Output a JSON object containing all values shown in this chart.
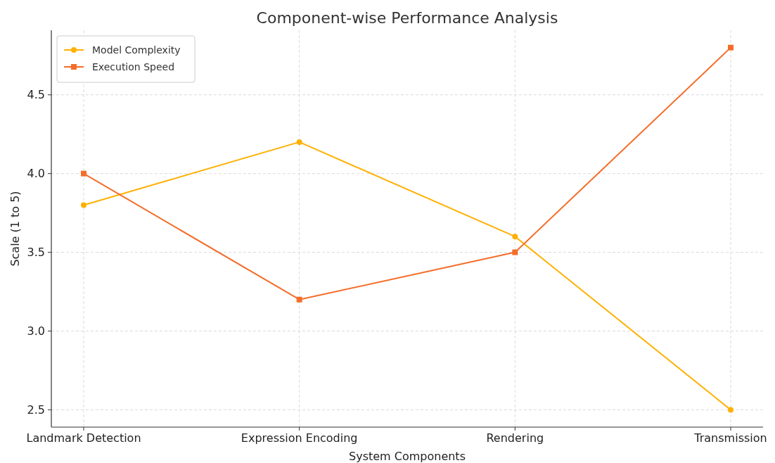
{
  "chart_data": {
    "type": "line",
    "title": "Component-wise Performance Analysis",
    "xlabel": "System Components",
    "ylabel": "Scale (1 to 5)",
    "categories": [
      "Landmark Detection",
      "Expression Encoding",
      "Rendering",
      "Transmission"
    ],
    "series": [
      {
        "name": "Model Complexity",
        "color": "#ffb000",
        "values": [
          3.8,
          4.2,
          3.6,
          2.5
        ],
        "marker": "circle"
      },
      {
        "name": "Execution Speed",
        "color": "#f46d2a",
        "values": [
          4.0,
          3.2,
          3.5,
          4.8
        ],
        "marker": "square"
      }
    ],
    "ylim": [
      2.39,
      4.91
    ],
    "yticks": [
      {
        "value": 2.5,
        "label": "2.5"
      },
      {
        "value": 3.0,
        "label": "3.0"
      },
      {
        "value": 3.5,
        "label": "3.5"
      },
      {
        "value": 4.0,
        "label": "4.0"
      },
      {
        "value": 4.5,
        "label": "4.5"
      }
    ],
    "grid": true,
    "legend": "top left",
    "line_style": "solid"
  }
}
